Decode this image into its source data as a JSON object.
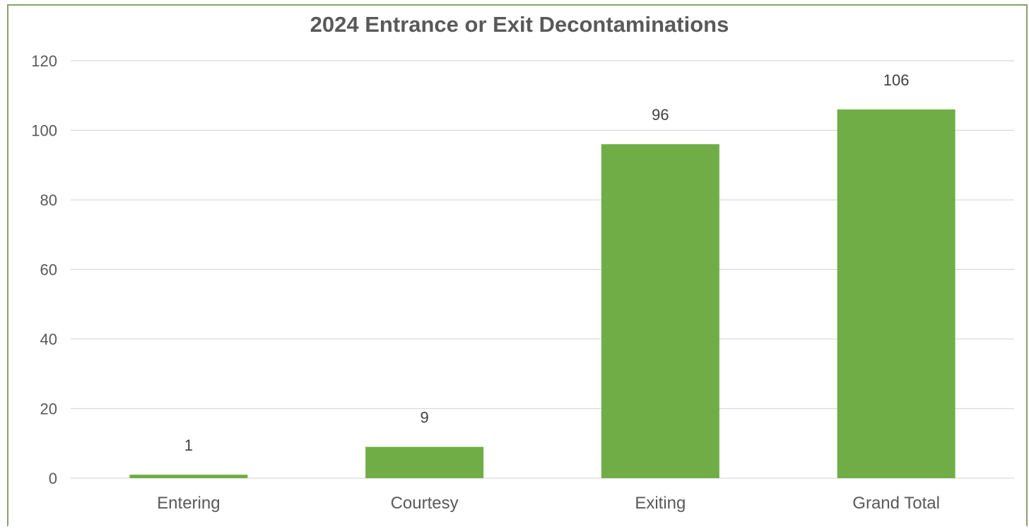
{
  "chart_data": {
    "type": "bar",
    "title": "2024 Entrance or Exit Decontaminations",
    "categories": [
      "Entering",
      "Courtesy",
      "Exiting",
      "Grand Total"
    ],
    "values": [
      1,
      9,
      96,
      106
    ],
    "ylim": [
      0,
      120
    ],
    "yticks": [
      0,
      20,
      40,
      60,
      80,
      100,
      120
    ],
    "grid": true,
    "data_labels": true,
    "bar_color": "#70ad47",
    "legend": "none"
  }
}
